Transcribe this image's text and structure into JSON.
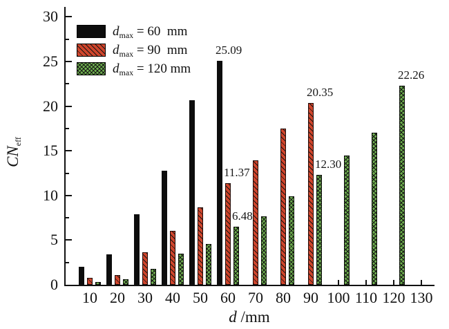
{
  "chart_data": {
    "type": "bar",
    "title": "",
    "x_axis": {
      "title_var": "d",
      "title_rest": " /mm",
      "ticks": [
        10,
        20,
        30,
        40,
        50,
        60,
        70,
        80,
        90,
        100,
        110,
        120,
        130
      ]
    },
    "y_axis": {
      "title_var": "CN",
      "title_sub": "eff",
      "ticks": [
        0,
        5,
        10,
        15,
        20,
        25,
        30
      ],
      "minor_step": 2.5,
      "range": [
        0,
        30
      ],
      "grid": false
    },
    "legend_position": "top-left-inside",
    "series": [
      {
        "legend": {
          "var": "d",
          "sub": "max",
          "rest": " = 60  mm"
        },
        "pattern": "solid",
        "color": "#0d0d0d",
        "points": [
          {
            "x": 10,
            "y": 2.0
          },
          {
            "x": 20,
            "y": 3.4
          },
          {
            "x": 30,
            "y": 7.9
          },
          {
            "x": 40,
            "y": 12.8
          },
          {
            "x": 50,
            "y": 20.7
          },
          {
            "x": 60,
            "y": 25.09,
            "label": "25.09"
          }
        ]
      },
      {
        "legend": {
          "var": "d",
          "sub": "max",
          "rest": " = 90  mm"
        },
        "pattern": "diagonal",
        "color": "#d0452c",
        "points": [
          {
            "x": 10,
            "y": 0.8
          },
          {
            "x": 20,
            "y": 1.1
          },
          {
            "x": 30,
            "y": 3.6
          },
          {
            "x": 40,
            "y": 6.0
          },
          {
            "x": 50,
            "y": 8.7
          },
          {
            "x": 60,
            "y": 11.37,
            "label": "11.37"
          },
          {
            "x": 70,
            "y": 13.9
          },
          {
            "x": 80,
            "y": 17.5
          },
          {
            "x": 90,
            "y": 20.35,
            "label": "20.35"
          }
        ]
      },
      {
        "legend": {
          "var": "d",
          "sub": "max",
          "rest": " = 120 mm"
        },
        "pattern": "crosshatch",
        "color": "#6fb04f",
        "points": [
          {
            "x": 10,
            "y": 0.3
          },
          {
            "x": 20,
            "y": 0.65
          },
          {
            "x": 30,
            "y": 1.8
          },
          {
            "x": 40,
            "y": 3.5
          },
          {
            "x": 50,
            "y": 4.6
          },
          {
            "x": 60,
            "y": 6.48,
            "label": "6.48"
          },
          {
            "x": 70,
            "y": 7.7
          },
          {
            "x": 80,
            "y": 9.9
          },
          {
            "x": 90,
            "y": 12.3,
            "label": "12.30"
          },
          {
            "x": 100,
            "y": 14.5
          },
          {
            "x": 110,
            "y": 17.0
          },
          {
            "x": 120,
            "y": 22.26,
            "label": "22.26"
          }
        ]
      }
    ],
    "colors": {
      "axis": "#111111",
      "hatch_line": "#141414",
      "background": "#ffffff"
    }
  }
}
